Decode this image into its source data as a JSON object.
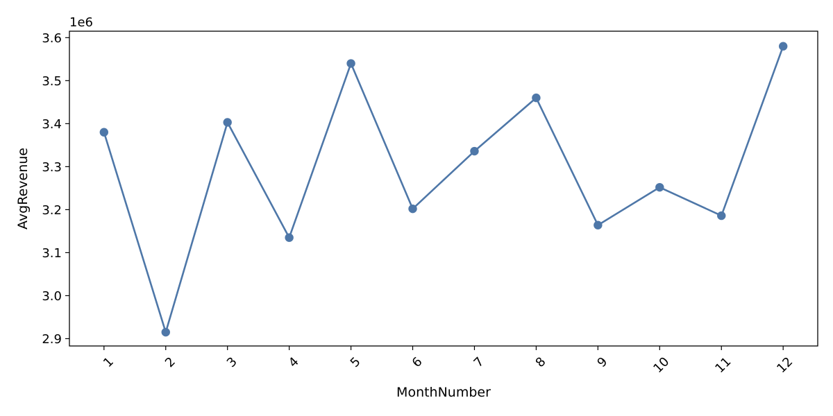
{
  "chart_data": {
    "type": "line",
    "xlabel": "MonthNumber",
    "ylabel": "AvgRevenue",
    "y_offset_label": "1e6",
    "x": [
      "1",
      "2",
      "3",
      "4",
      "5",
      "6",
      "7",
      "8",
      "9",
      "10",
      "11",
      "12"
    ],
    "series": [
      {
        "color": "#4e77a8",
        "marker": "circle",
        "values": [
          3.38,
          2.915,
          3.403,
          3.135,
          3.54,
          3.202,
          3.336,
          3.46,
          3.164,
          3.252,
          3.186,
          3.58
        ]
      }
    ],
    "y_scale_factor": 1000000,
    "ylim": [
      2.883,
      3.615
    ],
    "yticks": [
      "2.9",
      "3.0",
      "3.1",
      "3.2",
      "3.3",
      "3.4",
      "3.5",
      "3.6"
    ],
    "x_tick_rotation": 45,
    "grid": false,
    "legend": "none"
  }
}
